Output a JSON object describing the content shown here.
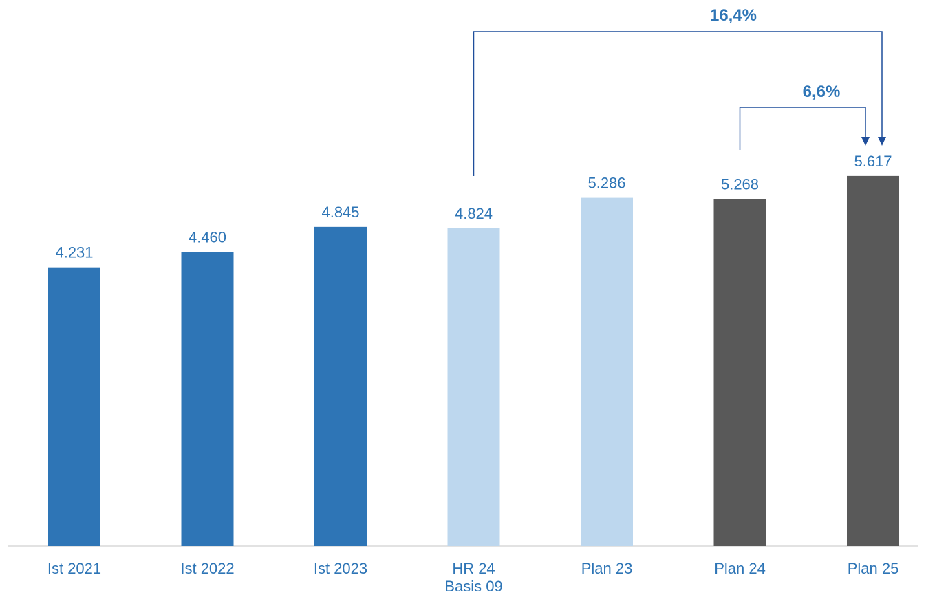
{
  "chart_data": {
    "type": "bar",
    "categories": [
      "Ist 2021",
      "Ist 2022",
      "Ist 2023",
      "HR 24\nBasis 09",
      "Plan 23",
      "Plan 24",
      "Plan 25"
    ],
    "values": [
      4231,
      4460,
      4845,
      4824,
      5286,
      5268,
      5617
    ],
    "value_labels": [
      "4.231",
      "4.460",
      "4.845",
      "4.824",
      "5.286",
      "5.268",
      "5.617"
    ],
    "bar_colors": [
      "#2E75B6",
      "#2E75B6",
      "#2E75B6",
      "#BDD7EE",
      "#BDD7EE",
      "#595959",
      "#595959"
    ],
    "ylim": [
      0,
      6000
    ],
    "grid": false,
    "title": "",
    "xlabel": "",
    "ylabel": "",
    "annotations": [
      {
        "label": "16,4%",
        "from_index": 3,
        "to_index": 6
      },
      {
        "label": "6,6%",
        "from_index": 5,
        "to_index": 6
      }
    ]
  },
  "colors": {
    "label_text": "#2E75B6",
    "axis": "#D9D9D9",
    "annotation": "#1F4E9B",
    "annotation_text": "#2E75B6"
  }
}
